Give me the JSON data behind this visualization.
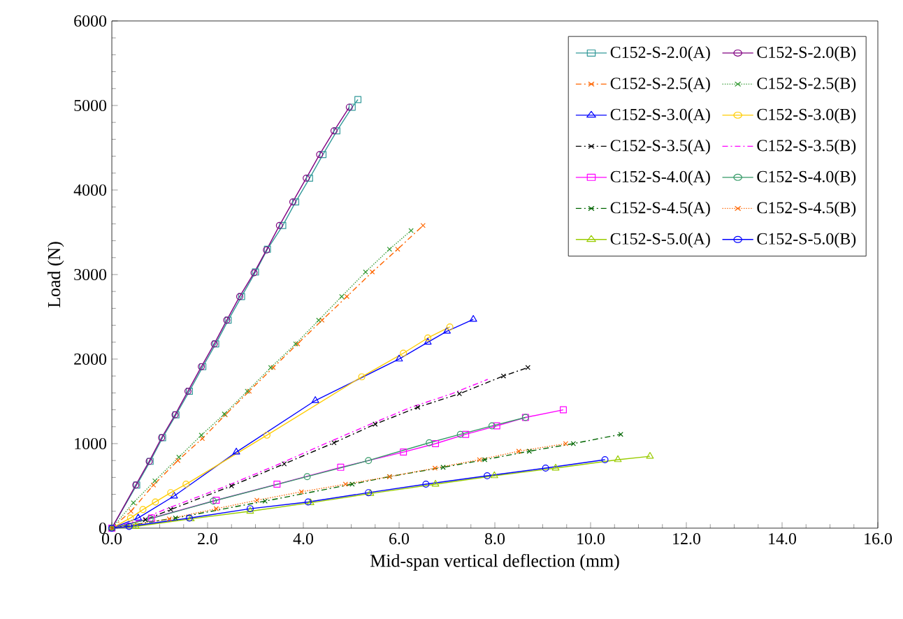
{
  "chart_data": {
    "type": "line",
    "xlabel": "Mid-span vertical deflection (mm)",
    "ylabel": "Load (N)",
    "xlim": [
      0,
      16
    ],
    "ylim": [
      0,
      6000
    ],
    "xticks": [
      {
        "value": 0,
        "label": "0.0"
      },
      {
        "value": 2,
        "label": "2.0"
      },
      {
        "value": 4,
        "label": "4.0"
      },
      {
        "value": 6,
        "label": "6.0"
      },
      {
        "value": 8,
        "label": "8.0"
      },
      {
        "value": 10,
        "label": "10.0"
      },
      {
        "value": 12,
        "label": "12.0"
      },
      {
        "value": 14,
        "label": "14.0"
      },
      {
        "value": 16,
        "label": "16.0"
      }
    ],
    "yticks": [
      0,
      1000,
      2000,
      3000,
      4000,
      5000,
      6000
    ],
    "legend": "top right",
    "grid": false,
    "series": [
      {
        "name": "C152-S-2.0(A)",
        "color": "#339999",
        "marker": "square",
        "line_style": "solid",
        "x": [
          0,
          0.52,
          0.8,
          1.06,
          1.34,
          1.62,
          1.9,
          2.17,
          2.43,
          2.71,
          3.0,
          3.25,
          3.57,
          3.84,
          4.13,
          4.41,
          4.7,
          5.02,
          5.14
        ],
        "values": [
          0,
          510,
          790,
          1070,
          1340,
          1620,
          1910,
          2180,
          2460,
          2740,
          3030,
          3300,
          3580,
          3860,
          4140,
          4420,
          4700,
          4980,
          5070
        ]
      },
      {
        "name": "C152-S-2.0(B)",
        "color": "#800080",
        "marker": "circle",
        "line_style": "solid",
        "x": [
          0,
          0.5,
          0.78,
          1.04,
          1.32,
          1.59,
          1.87,
          2.14,
          2.4,
          2.67,
          2.97,
          3.23,
          3.5,
          3.78,
          4.06,
          4.34,
          4.64,
          4.96
        ],
        "values": [
          0,
          510,
          790,
          1070,
          1340,
          1620,
          1910,
          2180,
          2460,
          2740,
          3020,
          3290,
          3580,
          3860,
          4140,
          4420,
          4700,
          4980
        ]
      },
      {
        "name": "C152-S-2.5(A)",
        "color": "#ff6600",
        "marker": "cross",
        "line_style": "dashed",
        "x": [
          0,
          0.4,
          0.87,
          1.38,
          1.89,
          2.37,
          2.87,
          3.37,
          3.88,
          4.39,
          4.91,
          5.44,
          5.97,
          6.5
        ],
        "values": [
          0,
          200,
          510,
          800,
          1060,
          1340,
          1620,
          1900,
          2180,
          2460,
          2740,
          3030,
          3300,
          3580
        ]
      },
      {
        "name": "C152-S-2.5(B)",
        "color": "#339933",
        "marker": "cross",
        "line_style": "dotted",
        "x": [
          0,
          0.45,
          0.9,
          1.4,
          1.87,
          2.35,
          2.83,
          3.32,
          3.84,
          4.32,
          4.8,
          5.3,
          5.8,
          6.25
        ],
        "values": [
          0,
          300,
          560,
          840,
          1100,
          1350,
          1620,
          1900,
          2180,
          2460,
          2740,
          3030,
          3300,
          3520
        ]
      },
      {
        "name": "C152-S-3.0(A)",
        "color": "#0000ff",
        "marker": "triangle",
        "line_style": "solid",
        "x": [
          0,
          0.55,
          1.3,
          2.6,
          4.25,
          6.0,
          6.6,
          7.0,
          7.55
        ],
        "values": [
          0,
          120,
          380,
          900,
          1510,
          2000,
          2200,
          2330,
          2470
        ]
      },
      {
        "name": "C152-S-3.0(B)",
        "color": "#ffcc00",
        "marker": "circle",
        "line_style": "solid",
        "x": [
          0,
          0.39,
          0.65,
          0.91,
          1.23,
          1.55,
          3.24,
          5.22,
          6.09,
          6.6,
          7.06
        ],
        "values": [
          0,
          120,
          220,
          310,
          420,
          520,
          1100,
          1790,
          2070,
          2250,
          2380
        ]
      },
      {
        "name": "C152-S-3.5(A)",
        "color": "#000000",
        "marker": "cross",
        "line_style": "dashed",
        "x": [
          0,
          0.7,
          1.23,
          2.5,
          3.6,
          4.64,
          5.5,
          6.39,
          7.26,
          8.18,
          8.69
        ],
        "values": [
          0,
          100,
          220,
          500,
          760,
          1010,
          1230,
          1430,
          1590,
          1800,
          1900
        ]
      },
      {
        "name": "C152-S-3.5(B)",
        "color": "#ff00ff",
        "marker": "none",
        "line_style": "dashed",
        "x": [
          0,
          0.6,
          1.1,
          2.4,
          3.5,
          4.5,
          5.4,
          6.25,
          7.1,
          7.85
        ],
        "values": [
          0,
          100,
          220,
          500,
          760,
          1010,
          1230,
          1430,
          1590,
          1760
        ]
      },
      {
        "name": "C152-S-4.0(A)",
        "color": "#ff00ff",
        "marker": "square",
        "line_style": "solid",
        "x": [
          0,
          0.83,
          2.18,
          3.45,
          4.78,
          6.09,
          6.76,
          7.39,
          8.04,
          8.64,
          9.43
        ],
        "values": [
          0,
          120,
          330,
          520,
          720,
          900,
          1000,
          1110,
          1210,
          1310,
          1400
        ]
      },
      {
        "name": "C152-S-4.0(B)",
        "color": "#339966",
        "marker": "circle",
        "line_style": "solid",
        "x": [
          0,
          0.8,
          2.12,
          4.08,
          5.36,
          6.63,
          7.28,
          7.94,
          8.64
        ],
        "values": [
          0,
          110,
          320,
          610,
          800,
          1010,
          1110,
          1210,
          1310
        ]
      },
      {
        "name": "C152-S-4.5(A)",
        "color": "#006600",
        "marker": "cross",
        "line_style": "dashed",
        "x": [
          0,
          1.33,
          3.2,
          5.02,
          5.8,
          6.92,
          7.79,
          8.72,
          9.64,
          10.63
        ],
        "values": [
          0,
          120,
          320,
          520,
          610,
          720,
          810,
          910,
          1000,
          1110
        ]
      },
      {
        "name": "C152-S-4.5(B)",
        "color": "#ff6600",
        "marker": "cross",
        "line_style": "dotted",
        "x": [
          0,
          1.2,
          2.18,
          3.03,
          3.96,
          4.88,
          5.8,
          6.75,
          7.68,
          8.5,
          9.48
        ],
        "values": [
          0,
          110,
          230,
          330,
          430,
          520,
          610,
          710,
          810,
          910,
          1000
        ]
      },
      {
        "name": "C152-S-5.0(A)",
        "color": "#99cc00",
        "marker": "triangle",
        "line_style": "solid",
        "x": [
          0,
          0.5,
          1.65,
          2.89,
          4.15,
          5.4,
          6.76,
          7.99,
          9.27,
          10.57,
          11.24
        ],
        "values": [
          0,
          20,
          110,
          200,
          300,
          410,
          520,
          620,
          710,
          810,
          850
        ]
      },
      {
        "name": "C152-S-5.0(B)",
        "color": "#0000ff",
        "marker": "circle",
        "line_style": "solid",
        "x": [
          0,
          0.36,
          1.62,
          2.89,
          4.1,
          5.36,
          6.56,
          7.84,
          9.06,
          10.3
        ],
        "values": [
          0,
          20,
          120,
          230,
          310,
          420,
          520,
          620,
          710,
          810
        ]
      }
    ]
  }
}
